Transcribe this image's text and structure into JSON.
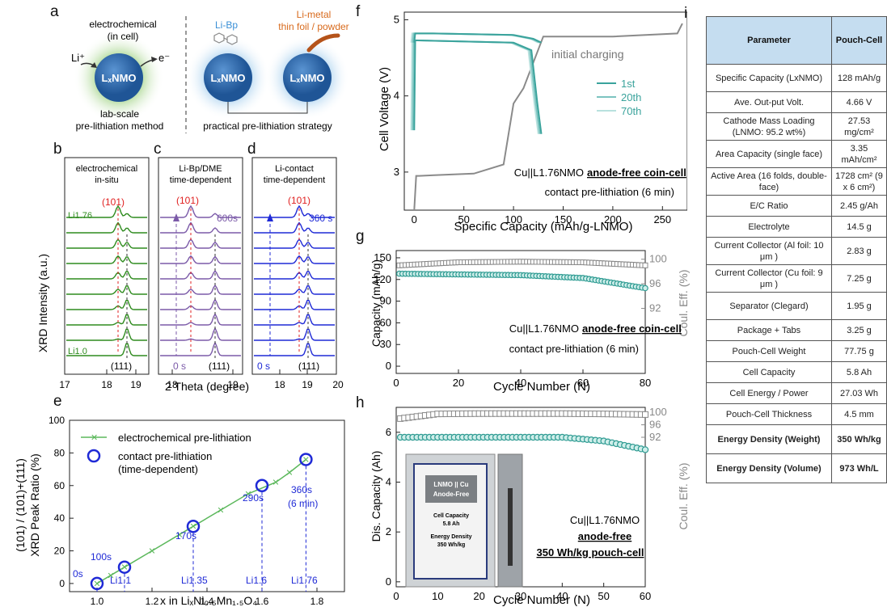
{
  "panel_labels": {
    "a": "a",
    "b": "b",
    "c": "c",
    "d": "d",
    "e": "e",
    "f": "f",
    "g": "g",
    "h": "h",
    "i": "i"
  },
  "panel_a": {
    "left_title_1": "electrochemical",
    "left_title_2": "(in cell)",
    "li_plus": "Li⁺",
    "e_minus": "e⁻",
    "sphere_label": "LₓNMO",
    "left_caption_1": "lab-scale",
    "left_caption_2": "pre-lithiation method",
    "libp_label": "Li-Bp",
    "metal_label_1": "Li-metal",
    "metal_label_2": "thin foil / powder",
    "right_caption": "practical pre-lithiation strategy",
    "colors": {
      "sphere": "#2f6db0",
      "libp_glow": "#a6cfee",
      "left_glow": "#a8d68f",
      "metal": "#d86a1c"
    }
  },
  "panel_bcd": {
    "ylabel": "XRD Intensity (a.u.)",
    "xlabel": "2 Theta (degree)",
    "b": {
      "title_1": "electrochemical",
      "title_2": "in-situ",
      "peak101": "(101)",
      "peak111": "(111)",
      "top_label": "Li1.76",
      "bottom_label": "Li1.0",
      "xticks": [
        "17",
        "18",
        "19"
      ],
      "color": "#2e8b1e"
    },
    "c": {
      "title_1": "Li-Bp/DME",
      "title_2": "time-dependent",
      "peak101": "(101)",
      "peak111": "(111)",
      "top_label": "600s",
      "bottom_label": "0 s",
      "xticks": [
        "18",
        "19"
      ],
      "color": "#7b5aa8"
    },
    "d": {
      "title_1": "Li-contact",
      "title_2": "time-dependent",
      "peak101": "(101)",
      "peak111": "(111)",
      "top_label": "360 s",
      "bottom_label": "0 s",
      "xticks": [
        "18",
        "19",
        "20"
      ],
      "color": "#1f2ad6"
    }
  },
  "panel_e": {
    "ylabel_1": "(101) / (101)+(111)",
    "ylabel_2": "XRD Peak Ratio (%)",
    "xlabel": "x in LiₓNi₀.₅Mn₁.₅O₄",
    "legend_line": "electrochemical pre-lithiation",
    "legend_circle_1": "contact pre-lithiation",
    "legend_circle_2": "(time-dependent)",
    "point_labels": [
      "0s",
      "100s",
      "170s",
      "290s",
      "360s",
      "(6 min)"
    ],
    "li_labels": [
      "Li1.1",
      "Li1.35",
      "Li1.6",
      "Li1.76"
    ],
    "xticks": [
      "1.0",
      "1.2",
      "1.4",
      "1.6",
      "1.8"
    ],
    "yticks": [
      "0",
      "20",
      "40",
      "60",
      "80",
      "100"
    ]
  },
  "panel_f": {
    "ylabel": "Cell Voltage (V)",
    "xlabel": "Specific Capacity (mAh/g-LNMO)",
    "annotation": "initial charging",
    "legend": [
      "1st",
      "20th",
      "70th"
    ],
    "caption_1": "Cu||L1.76NMO",
    "caption_1b": "anode-free coin-cell",
    "caption_2": "contact pre-lithiation (6 min)",
    "xticks": [
      "0",
      "50",
      "100",
      "150",
      "200",
      "250"
    ],
    "yticks": [
      "3",
      "4",
      "5"
    ]
  },
  "panel_g": {
    "ylabel": "Capacity (mAh/g)",
    "ylabel_right": "Coul. Eff. (%)",
    "xlabel": "Cycle Number (N)",
    "caption_1": "Cu||L1.76NMO",
    "caption_1b": "anode-free coin-cell",
    "caption_2": "contact pre-lithiation (6 min)",
    "xticks": [
      "0",
      "20",
      "40",
      "60",
      "80"
    ],
    "yticks": [
      "0",
      "30",
      "60",
      "90",
      "120",
      "150"
    ],
    "y2ticks": [
      "92",
      "96",
      "100"
    ]
  },
  "panel_h": {
    "ylabel": "Dis. Capacity (Ah)",
    "ylabel_right": "Coul. Eff. (%)",
    "xlabel": "Cycle Number (N)",
    "caption_1": "Cu||L1.76NMO",
    "caption_2": "anode-free",
    "caption_3": "350 Wh/kg pouch-cell",
    "photo_label_1": "LNMO || Cu",
    "photo_label_2": "Anode-Free",
    "photo_label_3": "Cell Capacity",
    "photo_label_4": "5.8 Ah",
    "photo_label_5": "Energy Density",
    "photo_label_6": "350 Wh/kg",
    "xticks": [
      "0",
      "10",
      "20",
      "30",
      "40",
      "50",
      "60"
    ],
    "yticks": [
      "0",
      "2",
      "4",
      "6"
    ],
    "y2ticks": [
      "92",
      "96",
      "100"
    ]
  },
  "chart_data": [
    {
      "type": "scatter",
      "panel": "e",
      "series": [
        {
          "name": "electrochemical pre-lithiation",
          "x": [
            1.0,
            1.05,
            1.1,
            1.2,
            1.3,
            1.35,
            1.45,
            1.55,
            1.65,
            1.7,
            1.76
          ],
          "y": [
            0,
            5,
            10,
            20,
            30,
            35,
            45,
            55,
            62,
            68,
            76
          ]
        },
        {
          "name": "contact pre-lithiation (time-dependent)",
          "x": [
            1.0,
            1.1,
            1.35,
            1.6,
            1.76
          ],
          "y": [
            0,
            10,
            35,
            60,
            76
          ]
        }
      ],
      "xlim": [
        0.9,
        1.9
      ],
      "ylim": [
        -5,
        100
      ]
    },
    {
      "type": "line",
      "panel": "f",
      "series": [
        {
          "name": "initial charging",
          "x": [
            0,
            2,
            5,
            20,
            60,
            90,
            100,
            110,
            130,
            200,
            265,
            270
          ],
          "y": [
            2.5,
            2.95,
            2.95,
            2.96,
            2.98,
            3.1,
            3.9,
            4.1,
            4.78,
            4.78,
            4.82,
            4.95
          ]
        },
        {
          "name": "1st",
          "x": [
            0,
            1,
            20,
            100,
            120,
            128
          ],
          "y": [
            4.7,
            4.82,
            4.82,
            4.8,
            4.75,
            4.7
          ]
        },
        {
          "name": "1st discharge",
          "x": [
            0,
            1,
            100,
            118,
            124,
            128
          ],
          "y": [
            3.55,
            4.73,
            4.7,
            4.6,
            3.9,
            3.5
          ]
        }
      ],
      "xlim": [
        -10,
        275
      ],
      "ylim": [
        2.5,
        5.1
      ]
    },
    {
      "type": "scatter",
      "panel": "g",
      "series": [
        {
          "name": "Capacity",
          "x": [
            1,
            20,
            40,
            60,
            80
          ],
          "y": [
            128,
            127,
            126,
            122,
            108
          ]
        },
        {
          "name": "Coul. Eff.",
          "x": [
            1,
            20,
            40,
            60,
            80
          ],
          "y": [
            99,
            99.5,
            99.6,
            99.5,
            99
          ]
        }
      ],
      "xlim": [
        0,
        80
      ],
      "ylim": [
        -10,
        160
      ]
    },
    {
      "type": "scatter",
      "panel": "h",
      "series": [
        {
          "name": "Dis. Capacity",
          "x": [
            1,
            10,
            20,
            30,
            40,
            50,
            60
          ],
          "y": [
            5.8,
            5.8,
            5.8,
            5.8,
            5.8,
            5.65,
            5.3
          ]
        },
        {
          "name": "Coul. Eff.",
          "x": [
            1,
            10,
            20,
            30,
            40,
            50,
            60
          ],
          "y": [
            98,
            99.5,
            99.6,
            99.6,
            99.6,
            99.5,
            99.3
          ]
        }
      ],
      "xlim": [
        0,
        60
      ],
      "ylim": [
        -0.2,
        7
      ]
    }
  ],
  "table": {
    "header": [
      "Parameter",
      "Pouch-Cell"
    ],
    "rows": [
      [
        "Specific Capacity (LxNMO)",
        "128 mAh/g"
      ],
      [
        "Ave. Out-put Volt.",
        "4.66 V"
      ],
      [
        "Cathode Mass Loading (LNMO: 95.2 wt%)",
        "27.53 mg/cm²"
      ],
      [
        "Area Capacity (single face)",
        "3.35 mAh/cm²"
      ],
      [
        "Active Area (16 folds, double-face)",
        "1728 cm² (9 x 6 cm²)"
      ],
      [
        "E/C Ratio",
        "2.45 g/Ah"
      ],
      [
        "Electrolyte",
        "14.5 g"
      ],
      [
        "Current Collector (Al foil: 10 μm )",
        "2.83 g"
      ],
      [
        "Current Collector (Cu foil: 9 μm )",
        "7.25 g"
      ],
      [
        "Separator (Clegard)",
        "1.95 g"
      ],
      [
        "Package + Tabs",
        "3.25 g"
      ],
      [
        "Pouch-Cell Weight",
        "77.75 g"
      ],
      [
        "Cell Capacity",
        "5.8 Ah"
      ],
      [
        "Cell Energy / Power",
        "27.03 Wh"
      ],
      [
        "Pouch-Cell Thickness",
        "4.5 mm"
      ],
      [
        "Energy Density (Weight)",
        "350 Wh/kg"
      ],
      [
        "Energy Density (Volume)",
        "973 Wh/L"
      ]
    ],
    "header_color": "#c5ddf0"
  }
}
